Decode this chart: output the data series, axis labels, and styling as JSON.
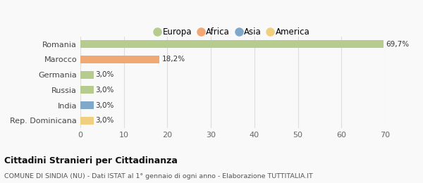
{
  "categories": [
    "Romania",
    "Marocco",
    "Germania",
    "Russia",
    "India",
    "Rep. Dominicana"
  ],
  "values": [
    69.7,
    18.2,
    3.0,
    3.0,
    3.0,
    3.0
  ],
  "labels": [
    "69,7%",
    "18,2%",
    "3,0%",
    "3,0%",
    "3,0%",
    "3,0%"
  ],
  "colors": [
    "#b5cc8e",
    "#f0a875",
    "#b5cc8e",
    "#b5cc8e",
    "#7fa8c9",
    "#f0d080"
  ],
  "legend": [
    {
      "label": "Europa",
      "color": "#b5cc8e"
    },
    {
      "label": "Africa",
      "color": "#f0a875"
    },
    {
      "label": "Asia",
      "color": "#7fa8c9"
    },
    {
      "label": "America",
      "color": "#f0d080"
    }
  ],
  "xlim": [
    0,
    70
  ],
  "xticks": [
    0,
    10,
    20,
    30,
    40,
    50,
    60,
    70
  ],
  "title": "Cittadini Stranieri per Cittadinanza",
  "subtitle": "COMUNE DI SINDIA (NU) - Dati ISTAT al 1° gennaio di ogni anno - Elaborazione TUTTITALIA.IT",
  "background_color": "#f9f9f9",
  "grid_color": "#dddddd",
  "bar_height": 0.5
}
